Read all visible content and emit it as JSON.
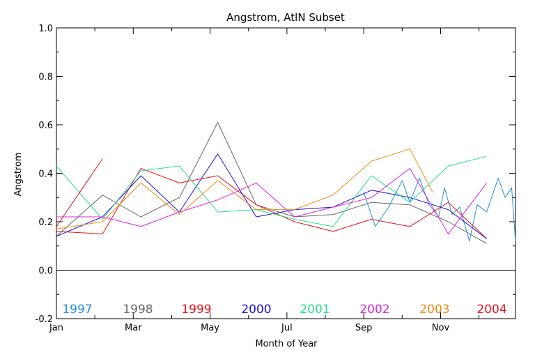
{
  "chart_data": {
    "type": "line",
    "title": "Angstrom, AtlN Subset",
    "xlabel": "Month of Year",
    "ylabel": "Angstrom",
    "xlim": [
      1,
      12.95
    ],
    "ylim": [
      -0.2,
      1.0
    ],
    "x_ticks": [
      {
        "v": 1,
        "label": "Jan"
      },
      {
        "v": 3,
        "label": "Mar"
      },
      {
        "v": 5,
        "label": "May"
      },
      {
        "v": 7,
        "label": "Jul"
      },
      {
        "v": 9,
        "label": "Sep"
      },
      {
        "v": 11,
        "label": "Nov"
      }
    ],
    "x_minor": [
      2,
      4,
      6,
      8,
      10,
      12
    ],
    "y_ticks": [
      {
        "v": -0.2,
        "label": "-0.2"
      },
      {
        "v": 0.0,
        "label": "0.0"
      },
      {
        "v": 0.2,
        "label": "0.2"
      },
      {
        "v": 0.4,
        "label": "0.4"
      },
      {
        "v": 0.6,
        "label": "0.6"
      },
      {
        "v": 0.8,
        "label": "0.8"
      },
      {
        "v": 1.0,
        "label": "1.0"
      }
    ],
    "zero_line": true,
    "legend_placement": "bottom, inside plot",
    "series": [
      {
        "name": "1997",
        "color": "#1f8fd6",
        "x": [
          9.0,
          9.3,
          9.65,
          10.0,
          10.2,
          10.45,
          10.7,
          10.95,
          11.1,
          11.3,
          11.5,
          11.75,
          11.95,
          12.2,
          12.5,
          12.68,
          12.85,
          12.95
        ],
        "y": [
          0.32,
          0.18,
          0.26,
          0.37,
          0.28,
          0.38,
          0.27,
          0.22,
          0.34,
          0.23,
          0.26,
          0.12,
          0.27,
          0.24,
          0.38,
          0.3,
          0.34,
          0.12
        ]
      },
      {
        "name": "1998",
        "color": "#666666",
        "x": [
          1.0,
          2.2,
          3.2,
          4.2,
          5.2,
          6.2,
          7.2,
          8.2,
          9.2,
          10.2,
          11.2,
          12.2
        ],
        "y": [
          0.14,
          0.31,
          0.22,
          0.3,
          0.61,
          0.27,
          0.22,
          0.23,
          0.28,
          0.27,
          0.2,
          0.11
        ]
      },
      {
        "name": "1999",
        "color": "#e8101a",
        "x": [
          1.0,
          2.2,
          3.2,
          4.2,
          5.2,
          6.2,
          7.2,
          8.2,
          9.2,
          10.2,
          11.2,
          12.2,
          1.0,
          2.2
        ],
        "y": [
          0.16,
          0.15,
          0.42,
          0.36,
          0.39,
          0.27,
          0.2,
          0.16,
          0.21,
          0.18,
          0.28,
          0.13,
          null,
          0.46
        ]
      },
      {
        "name": "2000",
        "color": "#1a10d6",
        "x": [
          1.0,
          2.2,
          3.2,
          4.2,
          5.2,
          6.2,
          7.2,
          8.2,
          9.2,
          10.2,
          11.2,
          12.2
        ],
        "y": [
          0.14,
          0.22,
          0.39,
          0.24,
          0.48,
          0.22,
          0.25,
          0.26,
          0.33,
          0.3,
          0.25,
          0.13
        ]
      },
      {
        "name": "2001",
        "color": "#22e08a",
        "x": [
          1.0,
          2.2,
          3.2,
          4.2,
          5.2,
          6.2,
          7.2,
          8.2,
          9.2,
          10.2,
          11.2,
          12.2
        ],
        "y": [
          0.43,
          0.21,
          0.41,
          0.43,
          0.24,
          0.25,
          0.21,
          0.18,
          0.39,
          0.28,
          0.43,
          0.47
        ]
      },
      {
        "name": "2002",
        "color": "#e020e0",
        "x": [
          1.0,
          2.2,
          3.2,
          4.2,
          5.2,
          6.2,
          7.2,
          8.2,
          9.2,
          10.2,
          11.2,
          12.2
        ],
        "y": [
          0.22,
          0.22,
          0.18,
          0.24,
          0.29,
          0.36,
          0.22,
          0.26,
          0.3,
          0.42,
          0.15,
          0.36
        ]
      },
      {
        "name": "2003",
        "color": "#f08a10",
        "x": [
          1.0,
          2.2,
          3.2,
          4.2,
          5.2,
          6.2,
          7.2,
          8.2,
          9.2,
          10.2,
          10.8
        ],
        "y": [
          0.17,
          0.2,
          0.36,
          0.23,
          0.37,
          0.25,
          0.25,
          0.31,
          0.45,
          0.5,
          0.32
        ]
      },
      {
        "name": "2004",
        "color": "#e8101a",
        "x": [
          1.0,
          2.2
        ],
        "y": [
          0.18,
          0.46
        ]
      }
    ]
  }
}
